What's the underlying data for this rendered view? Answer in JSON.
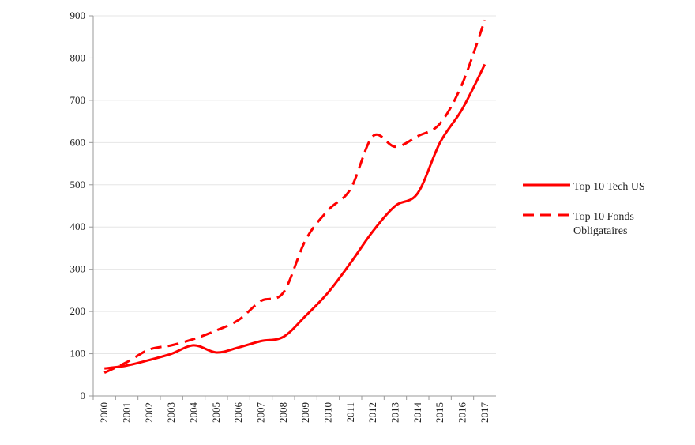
{
  "chart_data": {
    "type": "line",
    "categories": [
      "2000",
      "2001",
      "2002",
      "2003",
      "2004",
      "2005",
      "2006",
      "2007",
      "2008",
      "2009",
      "2010",
      "2011",
      "2012",
      "2013",
      "2014",
      "2015",
      "2016",
      "2017"
    ],
    "series": [
      {
        "name": "Top 10 Tech US",
        "color": "#ff0000",
        "dash": false,
        "values": [
          65,
          72,
          85,
          100,
          120,
          103,
          115,
          130,
          140,
          190,
          245,
          315,
          390,
          450,
          480,
          600,
          680,
          785
        ]
      },
      {
        "name": "Top 10 Fonds Obligataires",
        "color": "#ff0000",
        "dash": true,
        "values": [
          55,
          80,
          110,
          120,
          135,
          155,
          180,
          225,
          245,
          370,
          440,
          490,
          615,
          590,
          615,
          645,
          740,
          890
        ]
      }
    ],
    "ylim": [
      0,
      900
    ],
    "yticks": [
      0,
      100,
      200,
      300,
      400,
      500,
      600,
      700,
      800,
      900
    ],
    "grid": true,
    "legend": "right"
  }
}
